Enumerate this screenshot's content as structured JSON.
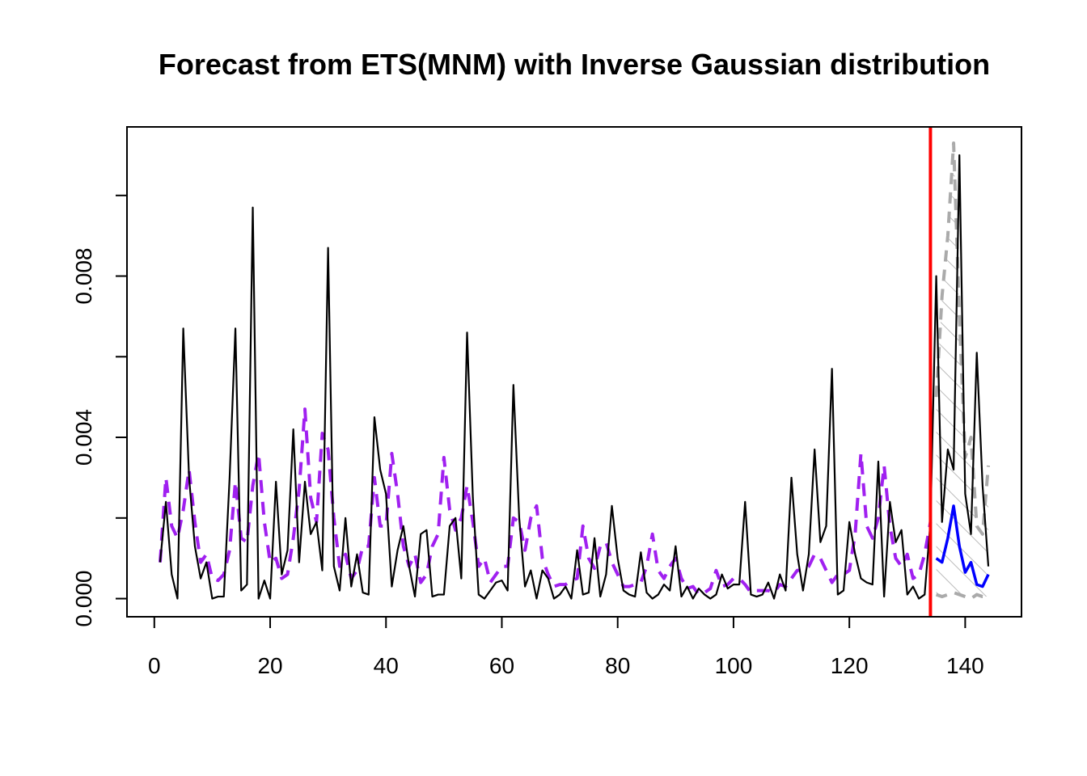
{
  "chart_data": {
    "type": "line",
    "title": "Forecast from ETS(MNM) with Inverse Gaussian distribution",
    "xlabel": "",
    "ylabel": "",
    "xlim": [
      -4.72,
      149.72
    ],
    "ylim": [
      -0.00045,
      0.0117
    ],
    "x_ticks": [
      0,
      20,
      40,
      60,
      80,
      100,
      120,
      140
    ],
    "x_tick_labels": [
      "0",
      "20",
      "40",
      "60",
      "80",
      "100",
      "120",
      "140"
    ],
    "y_ticks": [
      0,
      0.002,
      0.004,
      0.006,
      0.008,
      0.01
    ],
    "y_tick_labels": [
      "0.000",
      "",
      "0.004",
      "",
      "0.008",
      ""
    ],
    "grid": false,
    "forecast_origin": 134,
    "colors": {
      "actual": "#000000",
      "fitted": "#a020f0",
      "forecast": "#0000ff",
      "interval": "#aaaaaa",
      "origin": "#ff0000"
    },
    "series": [
      {
        "name": "actual",
        "x_start": 1,
        "values": [
          0.0009,
          0.0024,
          0.0006,
          0.0,
          0.0067,
          0.003,
          0.0013,
          0.0005,
          0.0009,
          0.0,
          5e-05,
          5e-05,
          0.003,
          0.0067,
          0.0002,
          0.00035,
          0.0097,
          0.0,
          0.00045,
          0.0,
          0.0029,
          0.0006,
          0.0012,
          0.0042,
          0.0009,
          0.0029,
          0.0016,
          0.0019,
          0.0007,
          0.0087,
          0.0008,
          0.0002,
          0.002,
          0.0003,
          0.0011,
          0.00015,
          0.0001,
          0.0045,
          0.0032,
          0.0026,
          0.0003,
          0.0012,
          0.0018,
          0.0008,
          5e-05,
          0.0016,
          0.0017,
          5e-05,
          0.0001,
          0.0001,
          0.0018,
          0.002,
          0.0005,
          0.0066,
          0.0025,
          0.0001,
          0.0,
          0.0002,
          0.0004,
          0.00045,
          0.0002,
          0.0053,
          0.002,
          0.0003,
          0.0007,
          0.0,
          0.0007,
          0.0005,
          0.0,
          0.0001,
          0.0003,
          0.0,
          0.0012,
          0.0001,
          0.00015,
          0.0015,
          5e-05,
          0.0006,
          0.0023,
          0.001,
          0.0002,
          0.0001,
          5e-05,
          0.00115,
          0.00015,
          0.0,
          0.0001,
          0.00035,
          0.0002,
          0.0013,
          5e-05,
          0.0003,
          0.0,
          0.00025,
          0.0001,
          0.0,
          0.0001,
          0.0006,
          0.00025,
          0.00035,
          0.00035,
          0.0024,
          0.0001,
          5e-05,
          0.0001,
          0.0004,
          0.0,
          0.0006,
          0.0002,
          0.003,
          0.0011,
          0.0002,
          0.0011,
          0.0037,
          0.0014,
          0.0018,
          0.0057,
          0.0001,
          0.0002,
          0.0019,
          0.0011,
          0.0005,
          0.0004,
          0.00035,
          0.0034,
          5e-05,
          0.0024,
          0.0014,
          0.0017,
          0.0001,
          0.0003,
          0.0,
          0.0001,
          0.0019,
          0.008,
          0.0019,
          0.0037,
          0.0032,
          0.011,
          0.0026,
          0.0016,
          0.0061,
          0.0028,
          0.0008
        ]
      },
      {
        "name": "fitted",
        "x_start": 1,
        "values": [
          0.0009,
          0.003,
          0.0018,
          0.0015,
          0.0022,
          0.0032,
          0.0019,
          0.0009,
          0.0011,
          0.0005,
          0.00045,
          0.0006,
          0.0012,
          0.0029,
          0.0015,
          0.0014,
          0.0028,
          0.0036,
          0.0019,
          0.0009,
          0.001,
          0.0005,
          0.0006,
          0.0015,
          0.0027,
          0.0047,
          0.0025,
          0.0019,
          0.0041,
          0.0037,
          0.002,
          0.0008,
          0.0011,
          0.0005,
          0.0007,
          0.0013,
          0.0013,
          0.003,
          0.0018,
          0.0018,
          0.0036,
          0.0026,
          0.0013,
          0.0008,
          0.0011,
          0.0004,
          0.0006,
          0.0013,
          0.0016,
          0.0035,
          0.0022,
          0.0017,
          0.002,
          0.0028,
          0.0019,
          0.0008,
          0.001,
          0.0004,
          0.0006,
          0.0008,
          0.0008,
          0.002,
          0.0019,
          0.0012,
          0.002,
          0.0023,
          0.001,
          0.0006,
          0.0003,
          0.00035,
          0.00035,
          0.00045,
          0.0005,
          0.0018,
          0.001,
          0.00075,
          0.0013,
          0.0014,
          0.0009,
          0.0006,
          0.0003,
          0.0003,
          0.00035,
          0.0004,
          0.0008,
          0.0016,
          0.0007,
          0.0005,
          0.0008,
          0.001,
          0.0005,
          0.00025,
          0.0003,
          0.0001,
          0.00015,
          0.00025,
          0.0007,
          0.0003,
          0.00035,
          0.0005,
          0.0005,
          0.00035,
          0.00015,
          0.0002,
          0.0002,
          0.0002,
          0.00015,
          0.00035,
          0.0003,
          0.0005,
          0.0007,
          0.0007,
          0.0008,
          0.0011,
          0.001,
          0.0007,
          0.0004,
          0.0006,
          0.0006,
          0.0007,
          0.0016,
          0.0036,
          0.0018,
          0.0015,
          0.002,
          0.0033,
          0.0018,
          0.001,
          0.0008,
          0.0011,
          0.0005,
          0.0006,
          0.0011,
          0.0019
        ]
      },
      {
        "name": "forecast",
        "x_start": 135,
        "values": [
          0.001,
          0.0009,
          0.0015,
          0.0023,
          0.0013,
          0.00065,
          0.0009,
          0.00035,
          0.0003,
          0.0006
        ]
      },
      {
        "name": "upper",
        "x_start": 135,
        "values": [
          0.005,
          0.0075,
          0.009,
          0.0113,
          0.007,
          0.0035,
          0.004,
          0.0018,
          0.0016,
          0.0033
        ]
      },
      {
        "name": "lower",
        "x_start": 135,
        "values": [
          0.0001,
          5e-05,
          0.0001,
          0.00015,
          0.0001,
          5e-05,
          0.0,
          0.0001,
          5e-05,
          5e-05
        ]
      }
    ]
  }
}
